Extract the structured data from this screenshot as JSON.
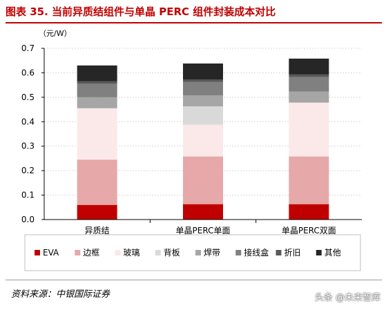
{
  "header": {
    "title": "图表 35. 当前异质结组件与单晶 PERC 组件封装成本对比"
  },
  "footer": {
    "source": "资料来源：中银国际证券",
    "watermark": "头条 @未来智库"
  },
  "chart_data": {
    "type": "bar",
    "stacked": true,
    "ylabel": "（元/W）",
    "ylim": [
      0,
      0.7
    ],
    "yticks": [
      "0.0",
      "0.1",
      "0.2",
      "0.3",
      "0.4",
      "0.5",
      "0.6",
      "0.7"
    ],
    "grid": true,
    "legend_position": "bottom",
    "categories": [
      "异质结",
      "单晶PERC单面",
      "单晶PERC双面"
    ],
    "series": [
      {
        "name": "EVA",
        "color": "#c00000",
        "values": [
          0.06,
          0.063,
          0.063
        ]
      },
      {
        "name": "边框",
        "color": "#e6a8a8",
        "values": [
          0.185,
          0.195,
          0.195
        ]
      },
      {
        "name": "玻璃",
        "color": "#fbe9e9",
        "values": [
          0.21,
          0.13,
          0.22
        ]
      },
      {
        "name": "背板",
        "color": "#d9d9d9",
        "values": [
          0.0,
          0.075,
          0.0
        ]
      },
      {
        "name": "焊带",
        "color": "#a6a6a6",
        "values": [
          0.045,
          0.045,
          0.045
        ]
      },
      {
        "name": "接线盒",
        "color": "#808080",
        "values": [
          0.055,
          0.055,
          0.06
        ]
      },
      {
        "name": "折旧",
        "color": "#595959",
        "values": [
          0.01,
          0.01,
          0.01
        ]
      },
      {
        "name": "其他",
        "color": "#262626",
        "values": [
          0.065,
          0.065,
          0.065
        ]
      }
    ]
  }
}
